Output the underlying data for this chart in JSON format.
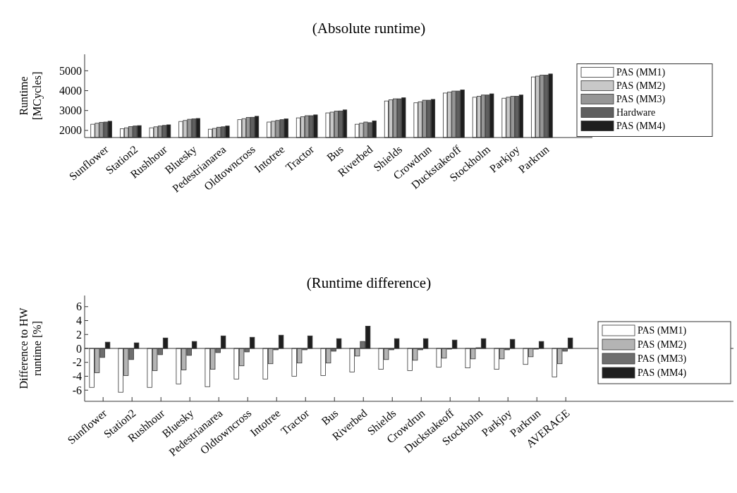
{
  "chart_data": [
    {
      "type": "bar",
      "title": "(Absolute runtime)",
      "ylabel": "Runtime\n[MCycles]",
      "categories": [
        "Sunflower",
        "Station2",
        "Rushhour",
        "Bluesky",
        "Pedestrianarea",
        "Oldtowncross",
        "Intotree",
        "Tractor",
        "Bus",
        "Riverbed",
        "Shields",
        "Crowdrun",
        "Duckstakeoff",
        "Stockholm",
        "Parkjoy",
        "Parkrun"
      ],
      "series": [
        {
          "name": "PAS (MM1)",
          "color": "#ffffff",
          "values": [
            2310,
            2080,
            2130,
            2450,
            2060,
            2540,
            2420,
            2630,
            2880,
            2310,
            3480,
            3390,
            3880,
            3670,
            3620,
            4690
          ]
        },
        {
          "name": "PAS (MM2)",
          "color": "#c8c8c8",
          "values": [
            2360,
            2130,
            2180,
            2500,
            2100,
            2590,
            2460,
            2690,
            2920,
            2360,
            3540,
            3440,
            3930,
            3720,
            3670,
            4730
          ]
        },
        {
          "name": "PAS (MM3)",
          "color": "#969696",
          "values": [
            2400,
            2190,
            2220,
            2560,
            2160,
            2650,
            2500,
            2740,
            2970,
            2420,
            3590,
            3520,
            3980,
            3780,
            3720,
            4780
          ]
        },
        {
          "name": "Hardware",
          "color": "#5f5f5f",
          "values": [
            2420,
            2220,
            2250,
            2580,
            2180,
            2660,
            2540,
            2740,
            2980,
            2390,
            3590,
            3520,
            3980,
            3780,
            3720,
            4780
          ]
        },
        {
          "name": "PAS (MM4)",
          "color": "#1e1e1e",
          "values": [
            2460,
            2240,
            2280,
            2600,
            2220,
            2710,
            2580,
            2780,
            3030,
            2480,
            3640,
            3560,
            4040,
            3840,
            3780,
            4840
          ]
        }
      ],
      "ylim": [
        1640,
        5830
      ],
      "yticks": [
        2000,
        3000,
        4000,
        5000
      ],
      "legend": "right",
      "grid": false
    },
    {
      "type": "bar",
      "title": "(Runtime difference)",
      "ylabel": "Difference to HW\nruntime [%]",
      "categories": [
        "Sunflower",
        "Station2",
        "Rushhour",
        "Bluesky",
        "Pedestrianarea",
        "Oldtowncross",
        "Intotree",
        "Tractor",
        "Bus",
        "Riverbed",
        "Shields",
        "Crowdrun",
        "Duckstakeoff",
        "Stockholm",
        "Parkjoy",
        "Parkrun",
        "AVERAGE"
      ],
      "series": [
        {
          "name": "PAS (MM1)",
          "color": "#ffffff",
          "values": [
            -5.6,
            -6.3,
            -5.6,
            -5.1,
            -5.5,
            -4.4,
            -4.4,
            -4.0,
            -3.9,
            -3.4,
            -3.0,
            -3.2,
            -2.7,
            -2.8,
            -3.0,
            -2.3,
            -4.1
          ]
        },
        {
          "name": "PAS (MM2)",
          "color": "#b4b4b4",
          "values": [
            -3.5,
            -3.9,
            -3.2,
            -3.1,
            -3.0,
            -2.5,
            -2.2,
            -2.1,
            -2.1,
            -1.1,
            -1.6,
            -1.7,
            -1.4,
            -1.5,
            -1.5,
            -1.2,
            -2.2
          ]
        },
        {
          "name": "PAS (MM3)",
          "color": "#6e6e6e",
          "values": [
            -1.3,
            -1.6,
            -0.9,
            -1.0,
            -0.6,
            -0.5,
            -0.2,
            -0.2,
            -0.4,
            1.0,
            -0.2,
            -0.2,
            -0.1,
            0.1,
            -0.2,
            -0.1,
            -0.4
          ]
        },
        {
          "name": "PAS (MM4)",
          "color": "#1e1e1e",
          "values": [
            0.9,
            0.8,
            1.5,
            1.0,
            1.8,
            1.6,
            1.9,
            1.8,
            1.4,
            3.2,
            1.4,
            1.4,
            1.2,
            1.4,
            1.3,
            1.0,
            1.5
          ]
        }
      ],
      "ylim": [
        -7.6,
        7.6
      ],
      "yticks": [
        -6,
        -4,
        -2,
        0,
        2,
        4,
        6
      ],
      "legend": "right",
      "grid": false,
      "ref_lines": [
        {
          "axis": "y",
          "value": 0,
          "color": "#333333"
        }
      ]
    }
  ]
}
